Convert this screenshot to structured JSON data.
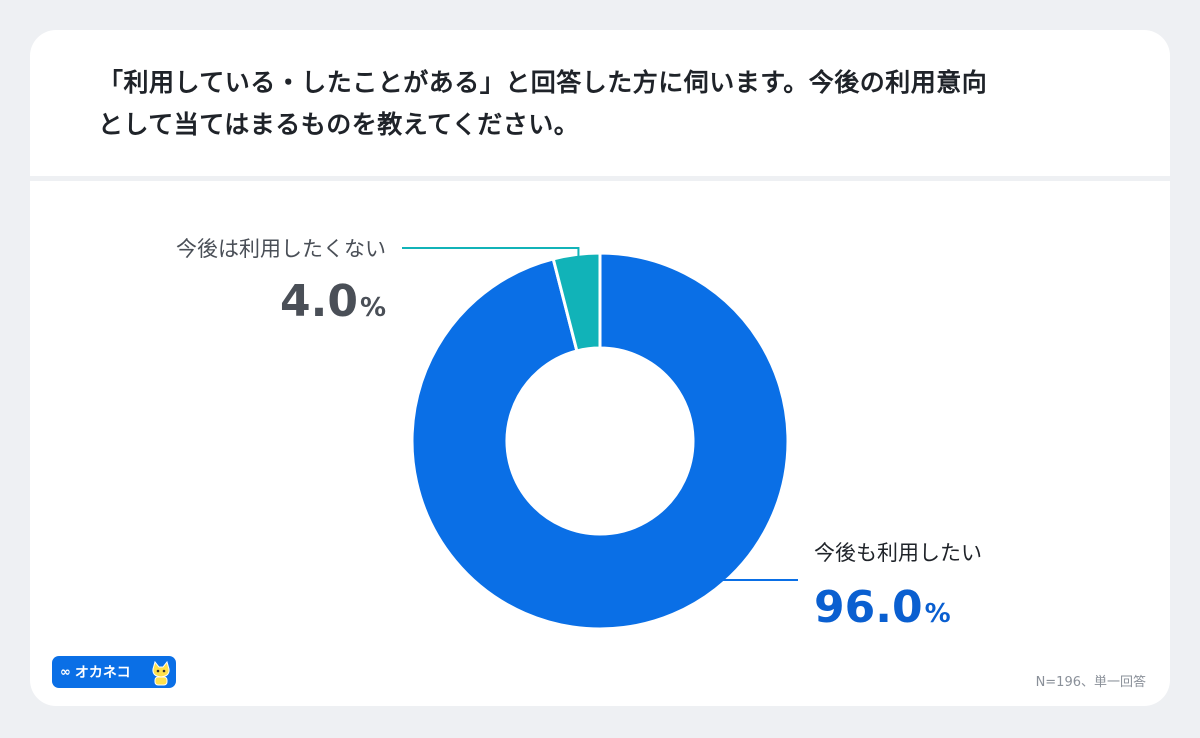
{
  "question": {
    "line1": "「利用している・したことがある」と回答した方に伺います。今後の利用意向",
    "line2": "として当てはまるものを教えてください。"
  },
  "chart_data": {
    "type": "pie",
    "donut": true,
    "categories": [
      "今後も利用したい",
      "今後は利用したくない"
    ],
    "values": [
      96.0,
      4.0
    ],
    "value_labels": [
      "96.0",
      "4.0"
    ],
    "unit": "%",
    "colors": [
      "#0a6fe6",
      "#11b3b8"
    ],
    "label_colors": [
      "#0a5fd0",
      "#4a4f57"
    ]
  },
  "footer": {
    "note": "N=196、単一回答",
    "logo_text": "オカネコ",
    "logo_mark": "∞"
  }
}
